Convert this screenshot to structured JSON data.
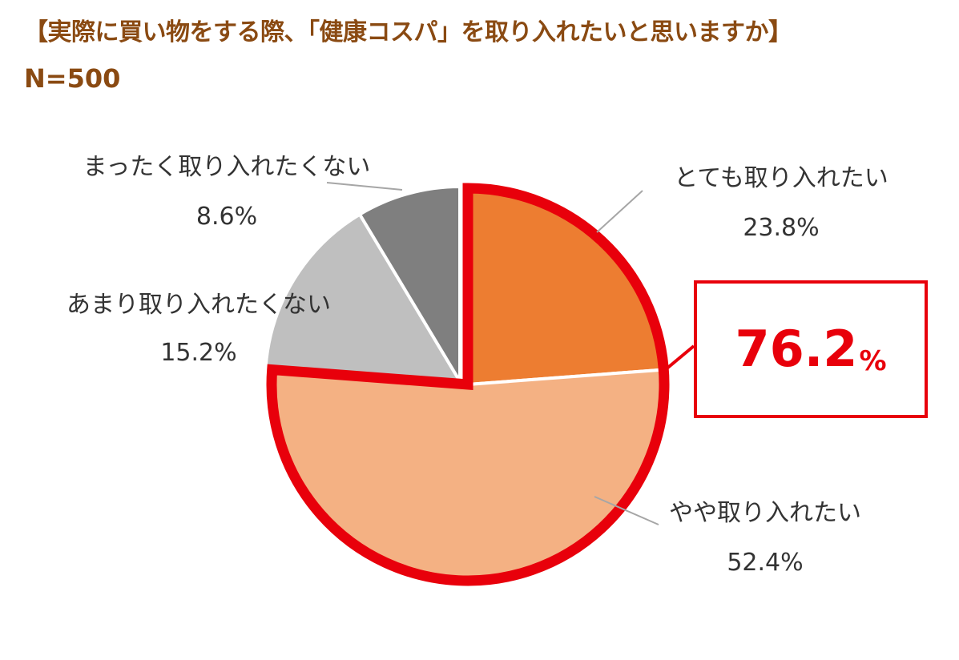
{
  "header": {
    "title": "【実際に買い物をする際、「健康コスパ」を取り入れたいと思いますか】",
    "subtitle": "N=500"
  },
  "callout": {
    "value": "76.2",
    "unit": "%"
  },
  "colors": {
    "very_want": "#ed7d31",
    "somewhat_want": "#f4b183",
    "not_much": "#bfbfbf",
    "not_at_all": "#7f7f7f",
    "highlight": "#e8000b",
    "title": "#8a4a12"
  },
  "chart_data": {
    "type": "pie",
    "title": "【実際に買い物をする際、「健康コスパ」を取り入れたいと思いますか】",
    "n": "N=500",
    "slices": [
      {
        "label": "とても取り入れたい",
        "value": 23.8,
        "display": "23.8%",
        "color": "#ed7d31"
      },
      {
        "label": "やや取り入れたい",
        "value": 52.4,
        "display": "52.4%",
        "color": "#f4b183"
      },
      {
        "label": "あまり取り入れたくない",
        "value": 15.2,
        "display": "15.2%",
        "color": "#bfbfbf"
      },
      {
        "label": "まったく取り入れたくない",
        "value": 8.6,
        "display": "8.6%",
        "color": "#7f7f7f"
      }
    ],
    "highlight": {
      "slices": [
        "とても取り入れたい",
        "やや取り入れたい"
      ],
      "total": "76.2%"
    }
  }
}
